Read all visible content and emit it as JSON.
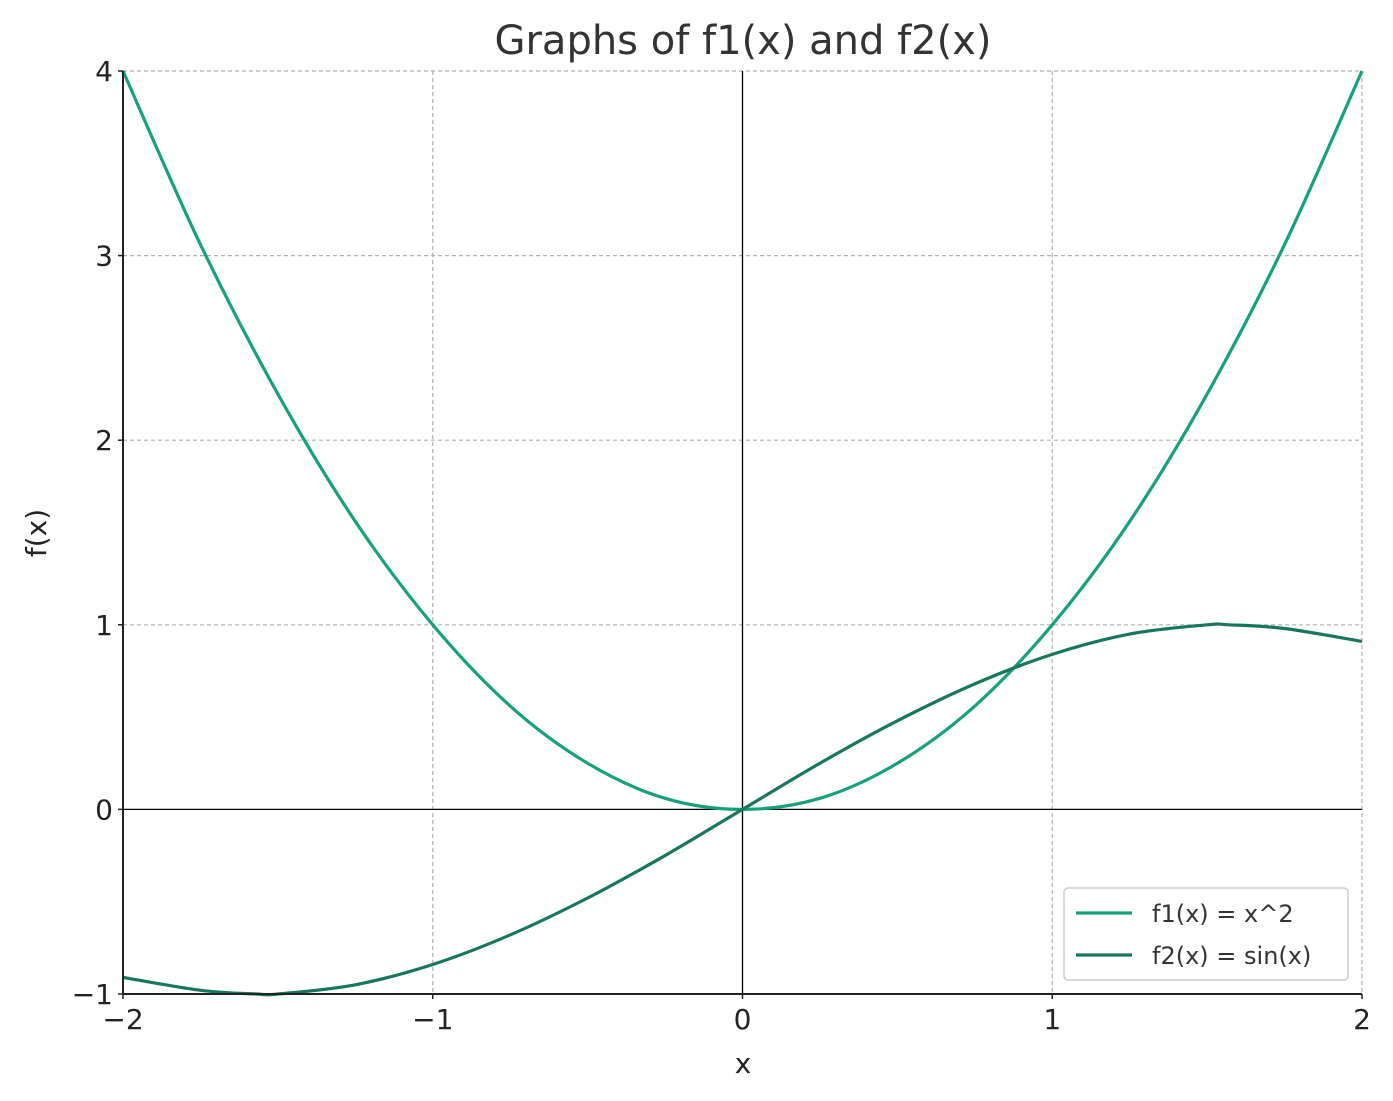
{
  "chart_data": {
    "type": "line",
    "title": "Graphs of f1(x) and f2(x)",
    "xlabel": "x",
    "ylabel": "f(x)",
    "xlim": [
      -2,
      2
    ],
    "ylim": [
      -1,
      4
    ],
    "xticks": [
      {
        "value": -2,
        "label": "−2"
      },
      {
        "value": -1,
        "label": "−1"
      },
      {
        "value": 0,
        "label": "0"
      },
      {
        "value": 1,
        "label": "1"
      },
      {
        "value": 2,
        "label": "2"
      }
    ],
    "yticks": [
      {
        "value": -1,
        "label": "−1"
      },
      {
        "value": 0,
        "label": "0"
      },
      {
        "value": 1,
        "label": "1"
      },
      {
        "value": 2,
        "label": "2"
      },
      {
        "value": 3,
        "label": "3"
      },
      {
        "value": 4,
        "label": "4"
      }
    ],
    "grid": true,
    "legend_position": "bottom-right",
    "series": [
      {
        "name": "f1(x) = x^2",
        "color": "#17a07e",
        "x": [
          -2.0,
          -1.75,
          -1.5,
          -1.25,
          -1.0,
          -0.75,
          -0.5,
          -0.25,
          0.0,
          0.25,
          0.5,
          0.75,
          1.0,
          1.25,
          1.5,
          1.75,
          2.0
        ],
        "y": [
          4.0,
          3.06,
          2.25,
          1.56,
          1.0,
          0.56,
          0.25,
          0.06,
          0.0,
          0.06,
          0.25,
          0.56,
          1.0,
          1.56,
          2.25,
          3.06,
          4.0
        ]
      },
      {
        "name": "f2(x) = sin(x)",
        "color": "#17765e",
        "x": [
          -2.0,
          -1.75,
          -1.57,
          -1.5,
          -1.25,
          -1.0,
          -0.75,
          -0.5,
          -0.25,
          0.0,
          0.25,
          0.5,
          0.75,
          1.0,
          1.25,
          1.5,
          1.57,
          1.75,
          2.0
        ],
        "y": [
          -0.91,
          -0.98,
          -1.0,
          -1.0,
          -0.95,
          -0.84,
          -0.68,
          -0.48,
          -0.25,
          0.0,
          0.25,
          0.48,
          0.68,
          0.84,
          0.95,
          1.0,
          1.0,
          0.98,
          0.91
        ]
      }
    ]
  }
}
